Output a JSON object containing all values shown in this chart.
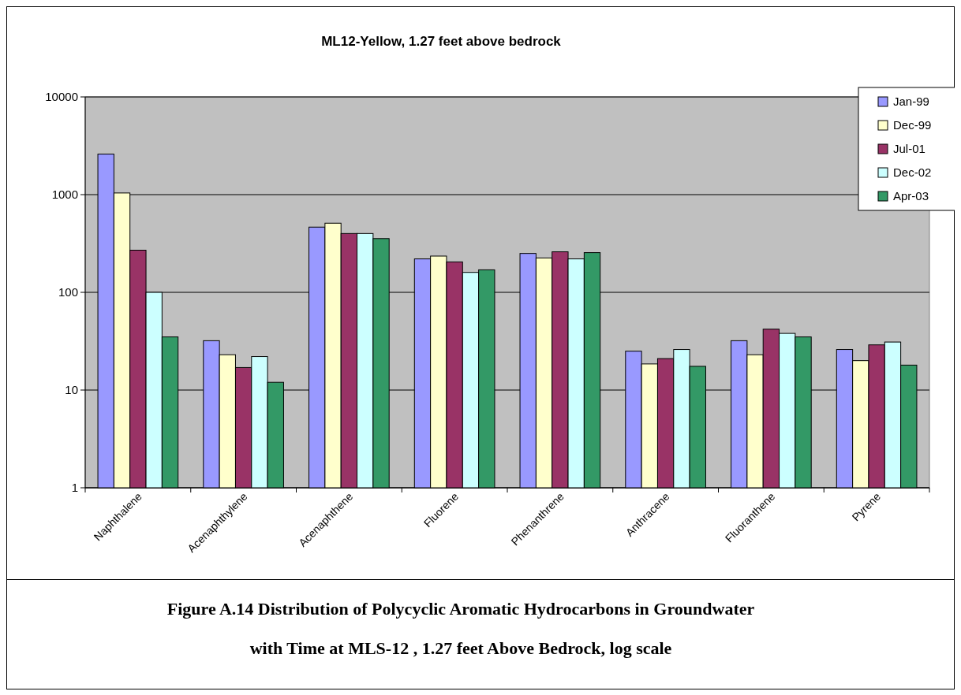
{
  "chart_data": {
    "type": "bar",
    "title": "ML12-Yellow, 1.27 feet above bedrock",
    "categories": [
      "Naphthalene",
      "Acenaphthylene",
      "Acenaphthene",
      "Fluorene",
      "Phenanthrene",
      "Anthracene",
      "Fluoranthene",
      "Pyrene"
    ],
    "series": [
      {
        "name": "Jan-99",
        "color": "#9999ff",
        "values": [
          2600,
          32,
          465,
          220,
          250,
          25,
          32,
          26
        ]
      },
      {
        "name": "Dec-99",
        "color": "#ffffcc",
        "values": [
          1040,
          23,
          510,
          235,
          225,
          18.5,
          23,
          20
        ]
      },
      {
        "name": "Jul-01",
        "color": "#993366",
        "values": [
          270,
          17,
          400,
          205,
          260,
          21,
          42,
          29
        ]
      },
      {
        "name": "Dec-02",
        "color": "#ccffff",
        "values": [
          100,
          22,
          400,
          160,
          220,
          26,
          38,
          31
        ]
      },
      {
        "name": "Apr-03",
        "color": "#339966",
        "values": [
          35,
          12,
          355,
          170,
          255,
          17.5,
          35,
          18
        ]
      }
    ],
    "log": true,
    "ylim": [
      1,
      10000
    ],
    "yticks": [
      1,
      10,
      100,
      1000,
      10000
    ],
    "grid": "y",
    "legend": "top right",
    "annotations": [
      "Figure A.14 Distribution of Polycyclic Aromatic Hydrocarbons in Groundwater",
      "with Time at MLS-12 , 1.27 feet Above Bedrock, log scale"
    ]
  }
}
